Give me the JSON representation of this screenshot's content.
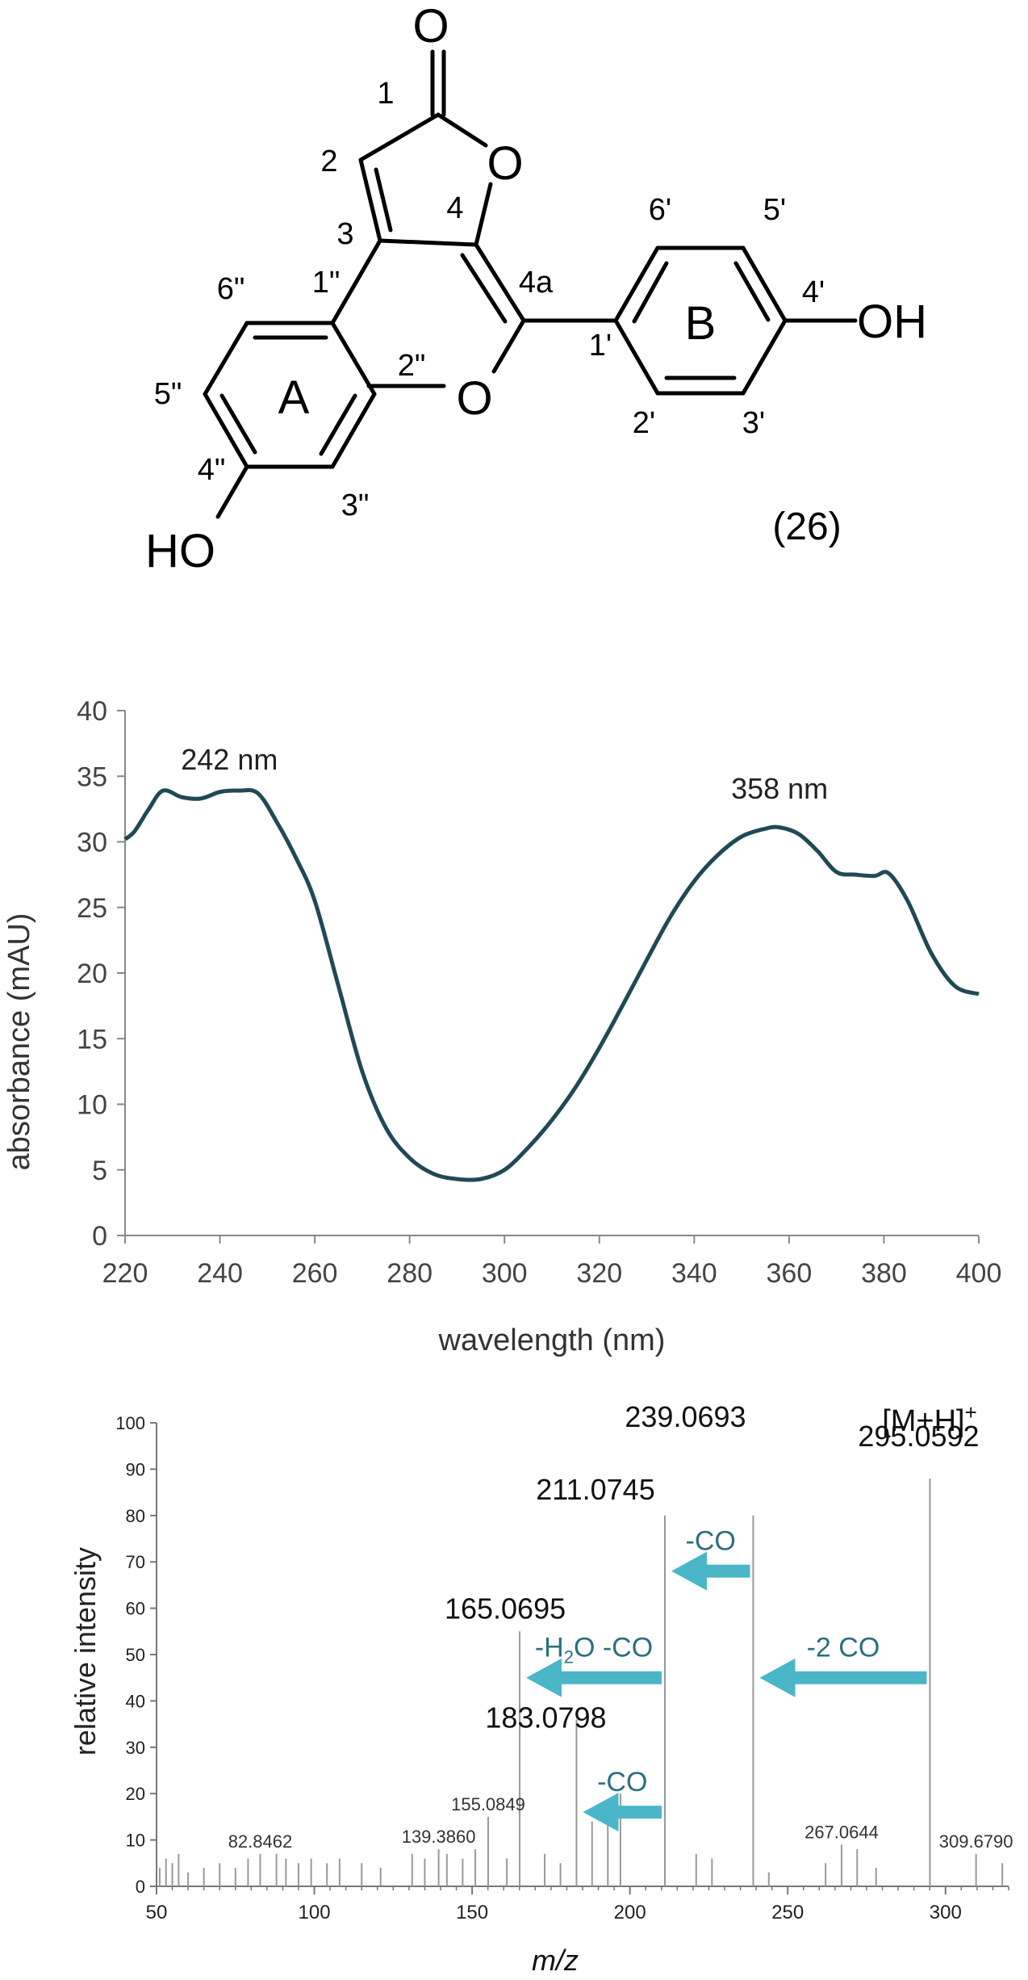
{
  "structure": {
    "compound_label": "(26)",
    "atoms": {
      "o_carbonyl": "O",
      "o_ring_lactone": "O",
      "o_ring_pyran": "O",
      "oh_b": "OH",
      "ho_a": "HO"
    },
    "ring_labels": {
      "a": "A",
      "b": "B"
    },
    "positions": [
      "1",
      "2",
      "3",
      "4",
      "4a",
      "1\"",
      "2\"",
      "3\"",
      "4\"",
      "5\"",
      "6\"",
      "1'",
      "2'",
      "3'",
      "4'",
      "5'",
      "6'"
    ]
  },
  "chart_data": [
    {
      "type": "line",
      "xlabel": "wavelength (nm)",
      "ylabel": "absorbance (mAU)",
      "xlim": [
        220,
        400
      ],
      "ylim": [
        0,
        40
      ],
      "xticks": [
        "220",
        "240",
        "260",
        "280",
        "300",
        "320",
        "340",
        "360",
        "380",
        "400"
      ],
      "yticks": [
        "0",
        "5",
        "10",
        "15",
        "20",
        "25",
        "30",
        "35",
        "40"
      ],
      "line_color": "#1f4a55",
      "x": [
        220,
        222,
        225,
        228,
        232,
        236,
        240,
        244,
        248,
        252,
        256,
        260,
        265,
        270,
        275,
        280,
        285,
        290,
        295,
        300,
        305,
        310,
        315,
        320,
        325,
        330,
        335,
        340,
        345,
        350,
        355,
        358,
        362,
        366,
        370,
        374,
        378,
        381,
        385,
        390,
        395,
        400
      ],
      "y": [
        30.2,
        30.8,
        32.5,
        33.9,
        33.4,
        33.3,
        33.8,
        33.9,
        33.7,
        31.5,
        28.8,
        25.5,
        19.0,
        12.5,
        8.2,
        5.9,
        4.7,
        4.3,
        4.3,
        5.0,
        6.7,
        8.8,
        11.3,
        14.3,
        17.6,
        21.0,
        24.3,
        27.0,
        29.0,
        30.4,
        31.0,
        31.1,
        30.6,
        29.3,
        27.7,
        27.5,
        27.4,
        27.6,
        25.5,
        21.5,
        19.0,
        18.4
      ],
      "annotations": [
        {
          "text": "242 nm",
          "x": 242,
          "y": 35.5
        },
        {
          "text": "358 nm",
          "x": 358,
          "y": 33.3
        }
      ]
    },
    {
      "type": "bar",
      "xlabel": "m/z",
      "ylabel": "relative intensity",
      "xlim": [
        50,
        320
      ],
      "ylim": [
        0,
        100
      ],
      "xticks": [
        "50",
        "100",
        "150",
        "200",
        "250",
        "300"
      ],
      "yticks": [
        "0",
        "10",
        "20",
        "30",
        "40",
        "50",
        "60",
        "70",
        "80",
        "90",
        "100"
      ],
      "peaks": [
        {
          "mz": 165.0695,
          "intensity": 55,
          "label": "165.0695"
        },
        {
          "mz": 183.0798,
          "intensity": 36,
          "label": "183.0798"
        },
        {
          "mz": 211.0745,
          "intensity": 80,
          "label": "211.0745"
        },
        {
          "mz": 239.0693,
          "intensity": 80,
          "label": "239.0693"
        },
        {
          "mz": 295.0592,
          "intensity": 88,
          "label": "295.0592"
        },
        {
          "mz": 155.0849,
          "intensity": 15,
          "label": "155.0849"
        },
        {
          "mz": 139.386,
          "intensity": 8,
          "label": "139.3860"
        },
        {
          "mz": 82.8462,
          "intensity": 7,
          "label": "82.8462"
        },
        {
          "mz": 267.0644,
          "intensity": 9,
          "label": "267.0644"
        },
        {
          "mz": 309.679,
          "intensity": 7,
          "label": "309.6790"
        },
        {
          "mz": 193.0,
          "intensity": 18
        },
        {
          "mz": 197.0,
          "intensity": 20
        },
        {
          "mz": 188.0,
          "intensity": 14
        },
        {
          "mz": 173.0,
          "intensity": 7
        },
        {
          "mz": 161.0,
          "intensity": 6
        },
        {
          "mz": 178.0,
          "intensity": 5
        },
        {
          "mz": 272.0,
          "intensity": 8
        },
        {
          "mz": 278.0,
          "intensity": 4
        },
        {
          "mz": 262.0,
          "intensity": 5
        },
        {
          "mz": 226.0,
          "intensity": 6
        },
        {
          "mz": 221.0,
          "intensity": 7
        },
        {
          "mz": 244.0,
          "intensity": 3
        },
        {
          "mz": 318.0,
          "intensity": 5
        },
        {
          "mz": 135.0,
          "intensity": 6
        },
        {
          "mz": 131.0,
          "intensity": 7
        },
        {
          "mz": 142.0,
          "intensity": 7
        },
        {
          "mz": 147.0,
          "intensity": 6
        },
        {
          "mz": 151.0,
          "intensity": 8
        },
        {
          "mz": 121.0,
          "intensity": 4
        },
        {
          "mz": 115.0,
          "intensity": 5
        },
        {
          "mz": 108.0,
          "intensity": 6
        },
        {
          "mz": 104.0,
          "intensity": 5
        },
        {
          "mz": 99.0,
          "intensity": 6
        },
        {
          "mz": 95.0,
          "intensity": 5
        },
        {
          "mz": 91.0,
          "intensity": 6
        },
        {
          "mz": 88.0,
          "intensity": 7
        },
        {
          "mz": 79.0,
          "intensity": 6
        },
        {
          "mz": 75.0,
          "intensity": 4
        },
        {
          "mz": 70.0,
          "intensity": 5
        },
        {
          "mz": 65.0,
          "intensity": 4
        },
        {
          "mz": 60.0,
          "intensity": 3
        },
        {
          "mz": 57.0,
          "intensity": 7
        },
        {
          "mz": 55.0,
          "intensity": 5
        },
        {
          "mz": 53.0,
          "intensity": 6
        },
        {
          "mz": 51.0,
          "intensity": 4
        }
      ],
      "precursor_label": "[M+H]",
      "precursor_charge": "+",
      "arrow_color": "#4ab6c8",
      "losses": [
        {
          "label": "-CO",
          "from": 239.0693,
          "to": 211.0745,
          "intensity": 68
        },
        {
          "label_pre": "-H",
          "label_sub": "2",
          "label_post": "O -CO",
          "from": 211.0745,
          "to": 165.0695,
          "intensity": 45
        },
        {
          "label": "-2 CO",
          "from": 295.0592,
          "to": 239.0693,
          "intensity": 45
        },
        {
          "label": "-CO",
          "from": 211.0745,
          "to": 183.0798,
          "intensity": 16
        }
      ]
    }
  ]
}
